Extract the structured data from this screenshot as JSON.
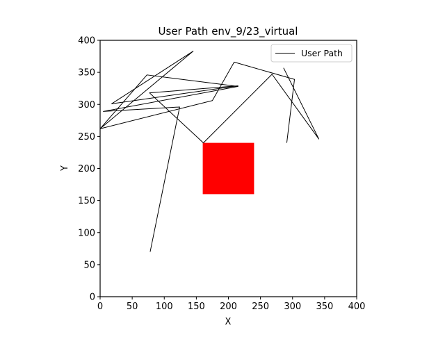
{
  "chart_data": {
    "type": "line",
    "title": "User Path env_9/23_virtual",
    "xlabel": "X",
    "ylabel": "Y",
    "xlim": [
      0,
      400
    ],
    "ylim": [
      0,
      400
    ],
    "xticks": [
      0,
      50,
      100,
      150,
      200,
      250,
      300,
      350,
      400
    ],
    "yticks": [
      0,
      50,
      100,
      150,
      200,
      250,
      300,
      350,
      400
    ],
    "grid": false,
    "legend_position": "upper right",
    "series": [
      {
        "name": "User Path",
        "color": "#000000",
        "x": [
          78,
          124,
          5,
          215,
          73,
          0,
          145,
          18,
          215,
          77,
          161,
          268,
          341,
          286
        ],
        "y": [
          70,
          296,
          289,
          328,
          346,
          262,
          383,
          301,
          329,
          318,
          240,
          347,
          246,
          357
        ]
      }
    ],
    "shapes": [
      {
        "type": "rectangle",
        "color": "#ff0000",
        "x": [
          160,
          240
        ],
        "y": [
          160,
          240
        ]
      }
    ],
    "extra_segments": [
      {
        "x": [
          0,
          175,
          209,
          303,
          291
        ],
        "y": [
          262,
          306,
          366,
          339,
          240
        ]
      }
    ]
  }
}
